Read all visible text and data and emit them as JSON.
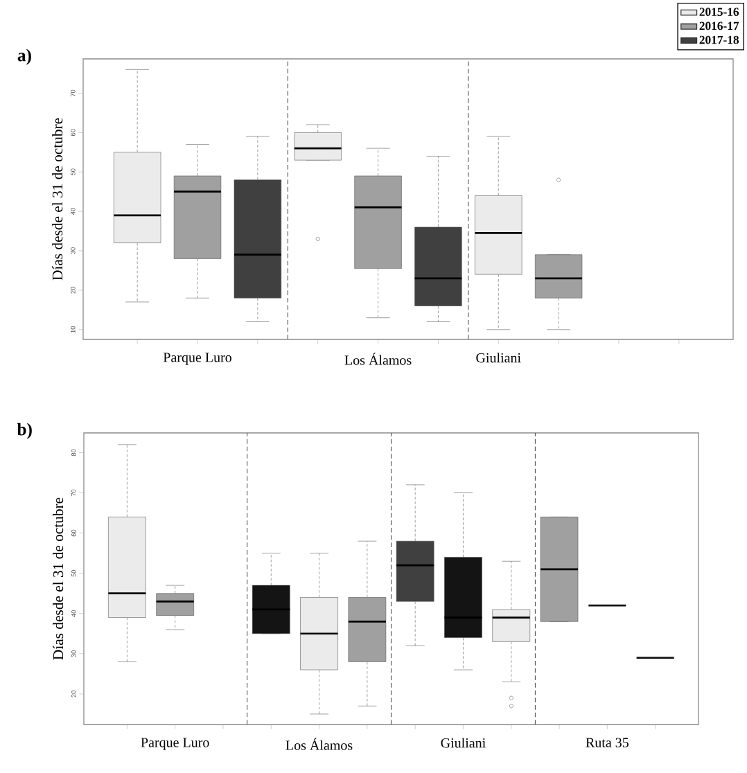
{
  "chart_data": [
    {
      "type": "box",
      "title": "a)",
      "ylabel": "Días desde el 31 de octubre",
      "categories": [
        null,
        "Parque Luro",
        null,
        null,
        "Los Álamos",
        null,
        "Giuliani",
        null,
        null,
        null
      ],
      "ylim": [
        7.5,
        78.7
      ],
      "yticks": [
        10,
        20,
        30,
        40,
        50,
        60,
        70
      ],
      "legend": "top right",
      "series": [
        {
          "name": "2015-16",
          "color": "#ebebeb",
          "boxes": [
            {
              "low": 17,
              "q1": 32,
              "median": 39,
              "q3": 55,
              "high": 76
            },
            null,
            null,
            {
              "low": 53,
              "q1": 53,
              "median": 56,
              "q3": 60,
              "high": 62,
              "outliers": [
                33
              ]
            },
            null,
            null,
            {
              "low": 10,
              "q1": 24,
              "median": 34.5,
              "q3": 44,
              "high": 59
            },
            null,
            null,
            null
          ]
        },
        {
          "name": "2016-17",
          "color": "#a0a0a0",
          "boxes": [
            null,
            {
              "low": 18,
              "q1": 28,
              "median": 45,
              "q3": 49,
              "high": 57
            },
            null,
            null,
            {
              "low": 13,
              "q1": 25.5,
              "median": 41,
              "q3": 49,
              "high": 56
            },
            null,
            null,
            {
              "low": 10,
              "q1": 18,
              "median": 23,
              "q3": 29,
              "high": 29,
              "outliers": [
                48
              ]
            },
            null,
            null
          ]
        },
        {
          "name": "2017-18",
          "color": "#404040",
          "boxes": [
            null,
            null,
            {
              "low": 12,
              "q1": 18,
              "median": 29,
              "q3": 48,
              "high": 59
            },
            null,
            null,
            {
              "low": 12,
              "q1": 16,
              "median": 23,
              "q3": 36,
              "high": 54
            },
            null,
            null,
            null,
            null
          ]
        }
      ]
    },
    {
      "type": "box",
      "title": "b)",
      "ylabel": "Días desde el 31 de octubre",
      "categories": [
        null,
        "Parque Luro",
        null,
        null,
        "Los Álamos",
        null,
        null,
        "Giuliani",
        null,
        null,
        "Ruta 35",
        null
      ],
      "ylim": [
        12.4,
        84.9
      ],
      "yticks": [
        20,
        30,
        40,
        50,
        60,
        70,
        80
      ],
      "series": [
        {
          "color": "#ebebeb",
          "boxes": [
            {
              "low": 28,
              "q1": 39,
              "median": 45,
              "q3": 64,
              "high": 82
            },
            null,
            null,
            null,
            {
              "low": 15,
              "q1": 26,
              "median": 35,
              "q3": 44,
              "high": 55
            },
            null,
            null,
            null,
            {
              "low": 23,
              "q1": 33,
              "median": 39,
              "q3": 41,
              "high": 53,
              "outliers": [
                19,
                17
              ]
            },
            null,
            null,
            null
          ]
        },
        {
          "color": "#a0a0a0",
          "boxes": [
            null,
            {
              "low": 36,
              "q1": 39.5,
              "median": 43,
              "q3": 45,
              "high": 47
            },
            null,
            null,
            null,
            {
              "low": 17,
              "q1": 28,
              "median": 38,
              "q3": 44,
              "high": 58
            },
            null,
            null,
            null,
            {
              "low": 38,
              "q1": 38,
              "median": 51,
              "q3": 64,
              "high": 64
            },
            null,
            null
          ]
        },
        {
          "color": "#404040",
          "boxes": [
            null,
            null,
            null,
            null,
            null,
            null,
            {
              "low": 32,
              "q1": 43,
              "median": 52,
              "q3": 58,
              "high": 72
            },
            null,
            null,
            null,
            null,
            null
          ]
        },
        {
          "color": "#141414",
          "boxes": [
            null,
            null,
            null,
            {
              "low": 35,
              "q1": 35,
              "median": 41,
              "q3": 47,
              "high": 55
            },
            null,
            null,
            null,
            {
              "low": 26,
              "q1": 34,
              "median": 39,
              "q3": 54,
              "high": 70
            },
            null,
            null,
            {
              "low": 42,
              "q1": 42,
              "median": 42,
              "q3": 42,
              "high": 42
            },
            {
              "low": 29,
              "q1": 29,
              "median": 29,
              "q3": 29,
              "high": 29
            }
          ]
        }
      ]
    }
  ]
}
